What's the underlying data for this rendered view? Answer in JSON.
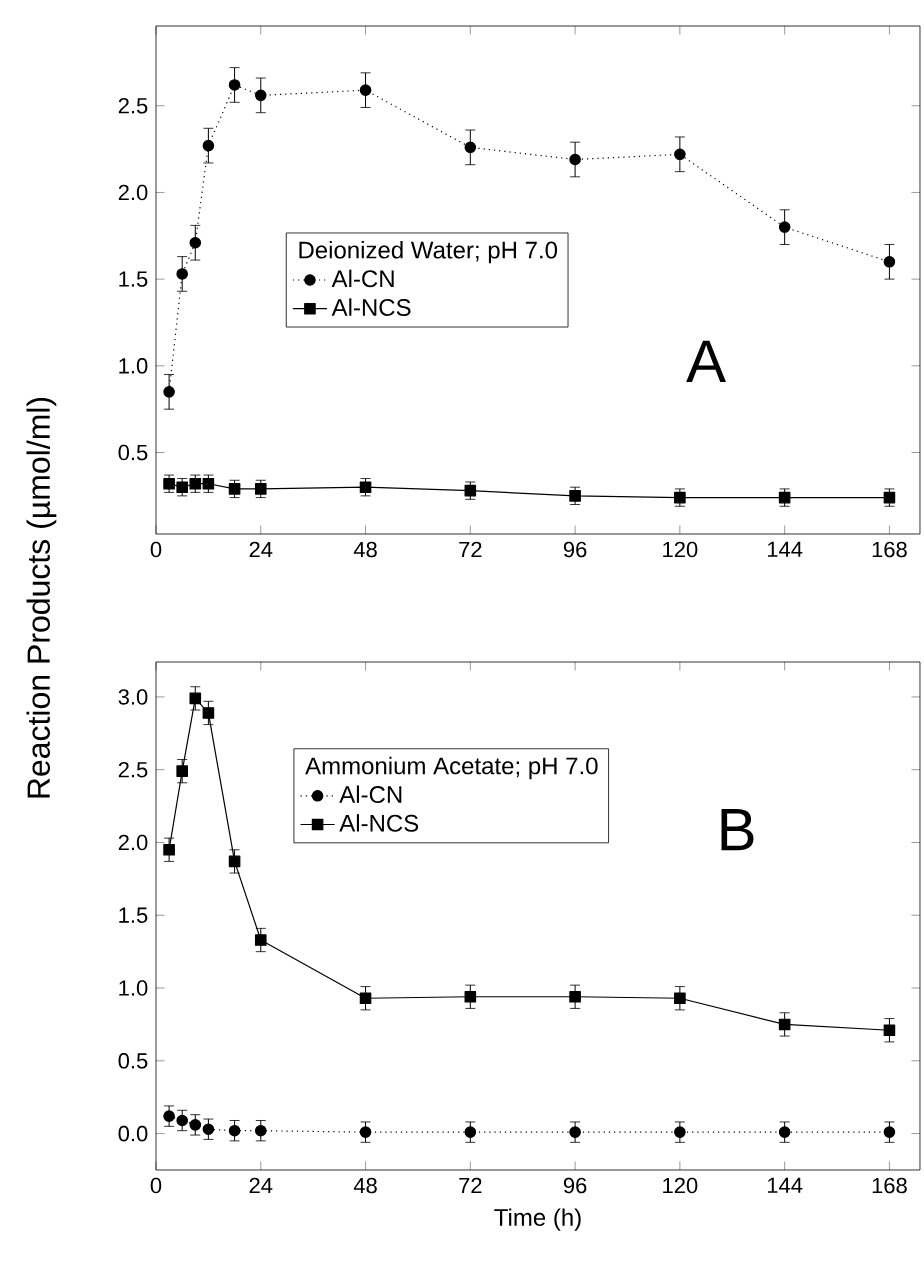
{
  "chart_data": [
    {
      "type": "line",
      "ylabel": "Reaction  Products  (µmol/ml)",
      "legend_title": "Deionized Water; pH 7.0",
      "legend": "left",
      "annotations": [
        "A"
      ],
      "x": [
        3,
        6,
        9,
        12,
        18,
        24,
        48,
        72,
        96,
        120,
        144,
        168
      ],
      "xlim": [
        0,
        175
      ],
      "xticks": [
        0,
        24,
        48,
        72,
        96,
        120,
        144,
        168
      ],
      "ylim": [
        0.03,
        2.96
      ],
      "yticks": [
        0.5,
        {
          "value": 1,
          "label": "1.0"
        },
        1.5,
        {
          "value": 2,
          "label": "2.0"
        },
        2.5
      ],
      "series": [
        {
          "name": "Al-CN",
          "color": "#000000",
          "marker": "circle",
          "line_style": "dotted",
          "values": [
            0.85,
            1.53,
            1.71,
            2.27,
            2.62,
            2.56,
            2.59,
            2.26,
            2.19,
            2.22,
            1.8,
            1.6
          ],
          "errors": [
            0.1,
            0.1,
            0.1,
            0.1,
            0.1,
            0.1,
            0.1,
            0.1,
            0.1,
            0.1,
            0.1,
            0.1
          ]
        },
        {
          "name": "Al-NCS",
          "color": "#000000",
          "marker": "square",
          "line_style": "solid",
          "values": [
            0.32,
            0.3,
            0.32,
            0.32,
            0.29,
            0.29,
            0.3,
            0.28,
            0.25,
            0.24,
            0.24,
            0.24
          ],
          "errors": [
            0.05,
            0.05,
            0.05,
            0.05,
            0.05,
            0.05,
            0.05,
            0.05,
            0.05,
            0.05,
            0.05,
            0.05
          ]
        }
      ]
    },
    {
      "type": "line",
      "xlabel": "Time (h)",
      "legend_title": "Ammonium Acetate; pH 7.0",
      "legend": "top left",
      "annotations": [
        "B"
      ],
      "x": [
        3,
        6,
        9,
        12,
        18,
        24,
        48,
        72,
        96,
        120,
        144,
        168
      ],
      "xlim": [
        0,
        175
      ],
      "xticks": [
        0,
        24,
        48,
        72,
        96,
        120,
        144,
        168
      ],
      "ylim": [
        -0.25,
        3.24
      ],
      "yticks": [
        {
          "value": 0,
          "label": "0.0"
        },
        0.5,
        {
          "value": 1,
          "label": "1.0"
        },
        1.5,
        {
          "value": 2,
          "label": "2.0"
        },
        2.5,
        {
          "value": 3,
          "label": "3.0"
        }
      ],
      "series": [
        {
          "name": "Al-CN",
          "color": "#000000",
          "marker": "circle",
          "line_style": "dotted",
          "values": [
            0.12,
            0.09,
            0.06,
            0.03,
            0.02,
            0.02,
            0.01,
            0.01,
            0.01,
            0.01,
            0.01,
            0.01
          ],
          "errors": [
            0.07,
            0.07,
            0.07,
            0.07,
            0.07,
            0.07,
            0.07,
            0.07,
            0.07,
            0.07,
            0.07,
            0.07
          ]
        },
        {
          "name": "Al-NCS",
          "color": "#000000",
          "marker": "square",
          "line_style": "solid",
          "values": [
            1.95,
            2.49,
            2.99,
            2.89,
            1.87,
            1.33,
            0.93,
            0.94,
            0.94,
            0.93,
            0.75,
            0.71
          ],
          "errors": [
            0.08,
            0.08,
            0.08,
            0.08,
            0.08,
            0.08,
            0.08,
            0.08,
            0.08,
            0.08,
            0.08,
            0.08
          ]
        }
      ]
    }
  ]
}
